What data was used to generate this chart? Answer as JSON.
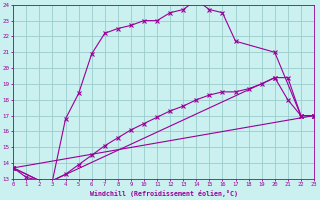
{
  "xlabel": "Windchill (Refroidissement éolien,°C)",
  "bg_color": "#caf0f0",
  "line_color": "#990099",
  "grid_color": "#99cccc",
  "x_min": 0,
  "x_max": 23,
  "y_min": 13,
  "y_max": 24,
  "curve1_x": [
    0,
    1,
    2,
    3,
    4,
    5,
    6,
    7,
    8,
    9,
    10,
    11,
    12,
    13,
    14,
    15,
    16,
    17,
    20,
    22,
    23
  ],
  "curve1_y": [
    13.7,
    13.1,
    12.9,
    12.9,
    16.8,
    18.4,
    20.9,
    22.2,
    22.5,
    22.7,
    23.0,
    23.0,
    23.5,
    23.7,
    24.3,
    23.7,
    23.5,
    21.7,
    21.0,
    17.0,
    17.0
  ],
  "curve2_x": [
    0,
    2,
    3,
    20,
    21,
    22,
    23
  ],
  "curve2_y": [
    13.7,
    12.9,
    12.9,
    19.4,
    18.0,
    17.0,
    17.0
  ],
  "curve3_x": [
    0,
    23
  ],
  "curve3_y": [
    13.7,
    17.0
  ],
  "curve4_x": [
    0,
    2,
    3,
    4,
    5,
    6,
    7,
    8,
    9,
    10,
    11,
    12,
    13,
    14,
    15,
    16,
    17,
    18,
    19,
    20,
    21,
    22,
    23
  ],
  "curve4_y": [
    13.7,
    12.9,
    12.9,
    13.3,
    13.9,
    14.5,
    15.1,
    15.6,
    16.1,
    16.5,
    16.9,
    17.3,
    17.6,
    18.0,
    18.3,
    18.5,
    18.5,
    18.7,
    19.0,
    19.4,
    19.4,
    17.0,
    17.0
  ]
}
